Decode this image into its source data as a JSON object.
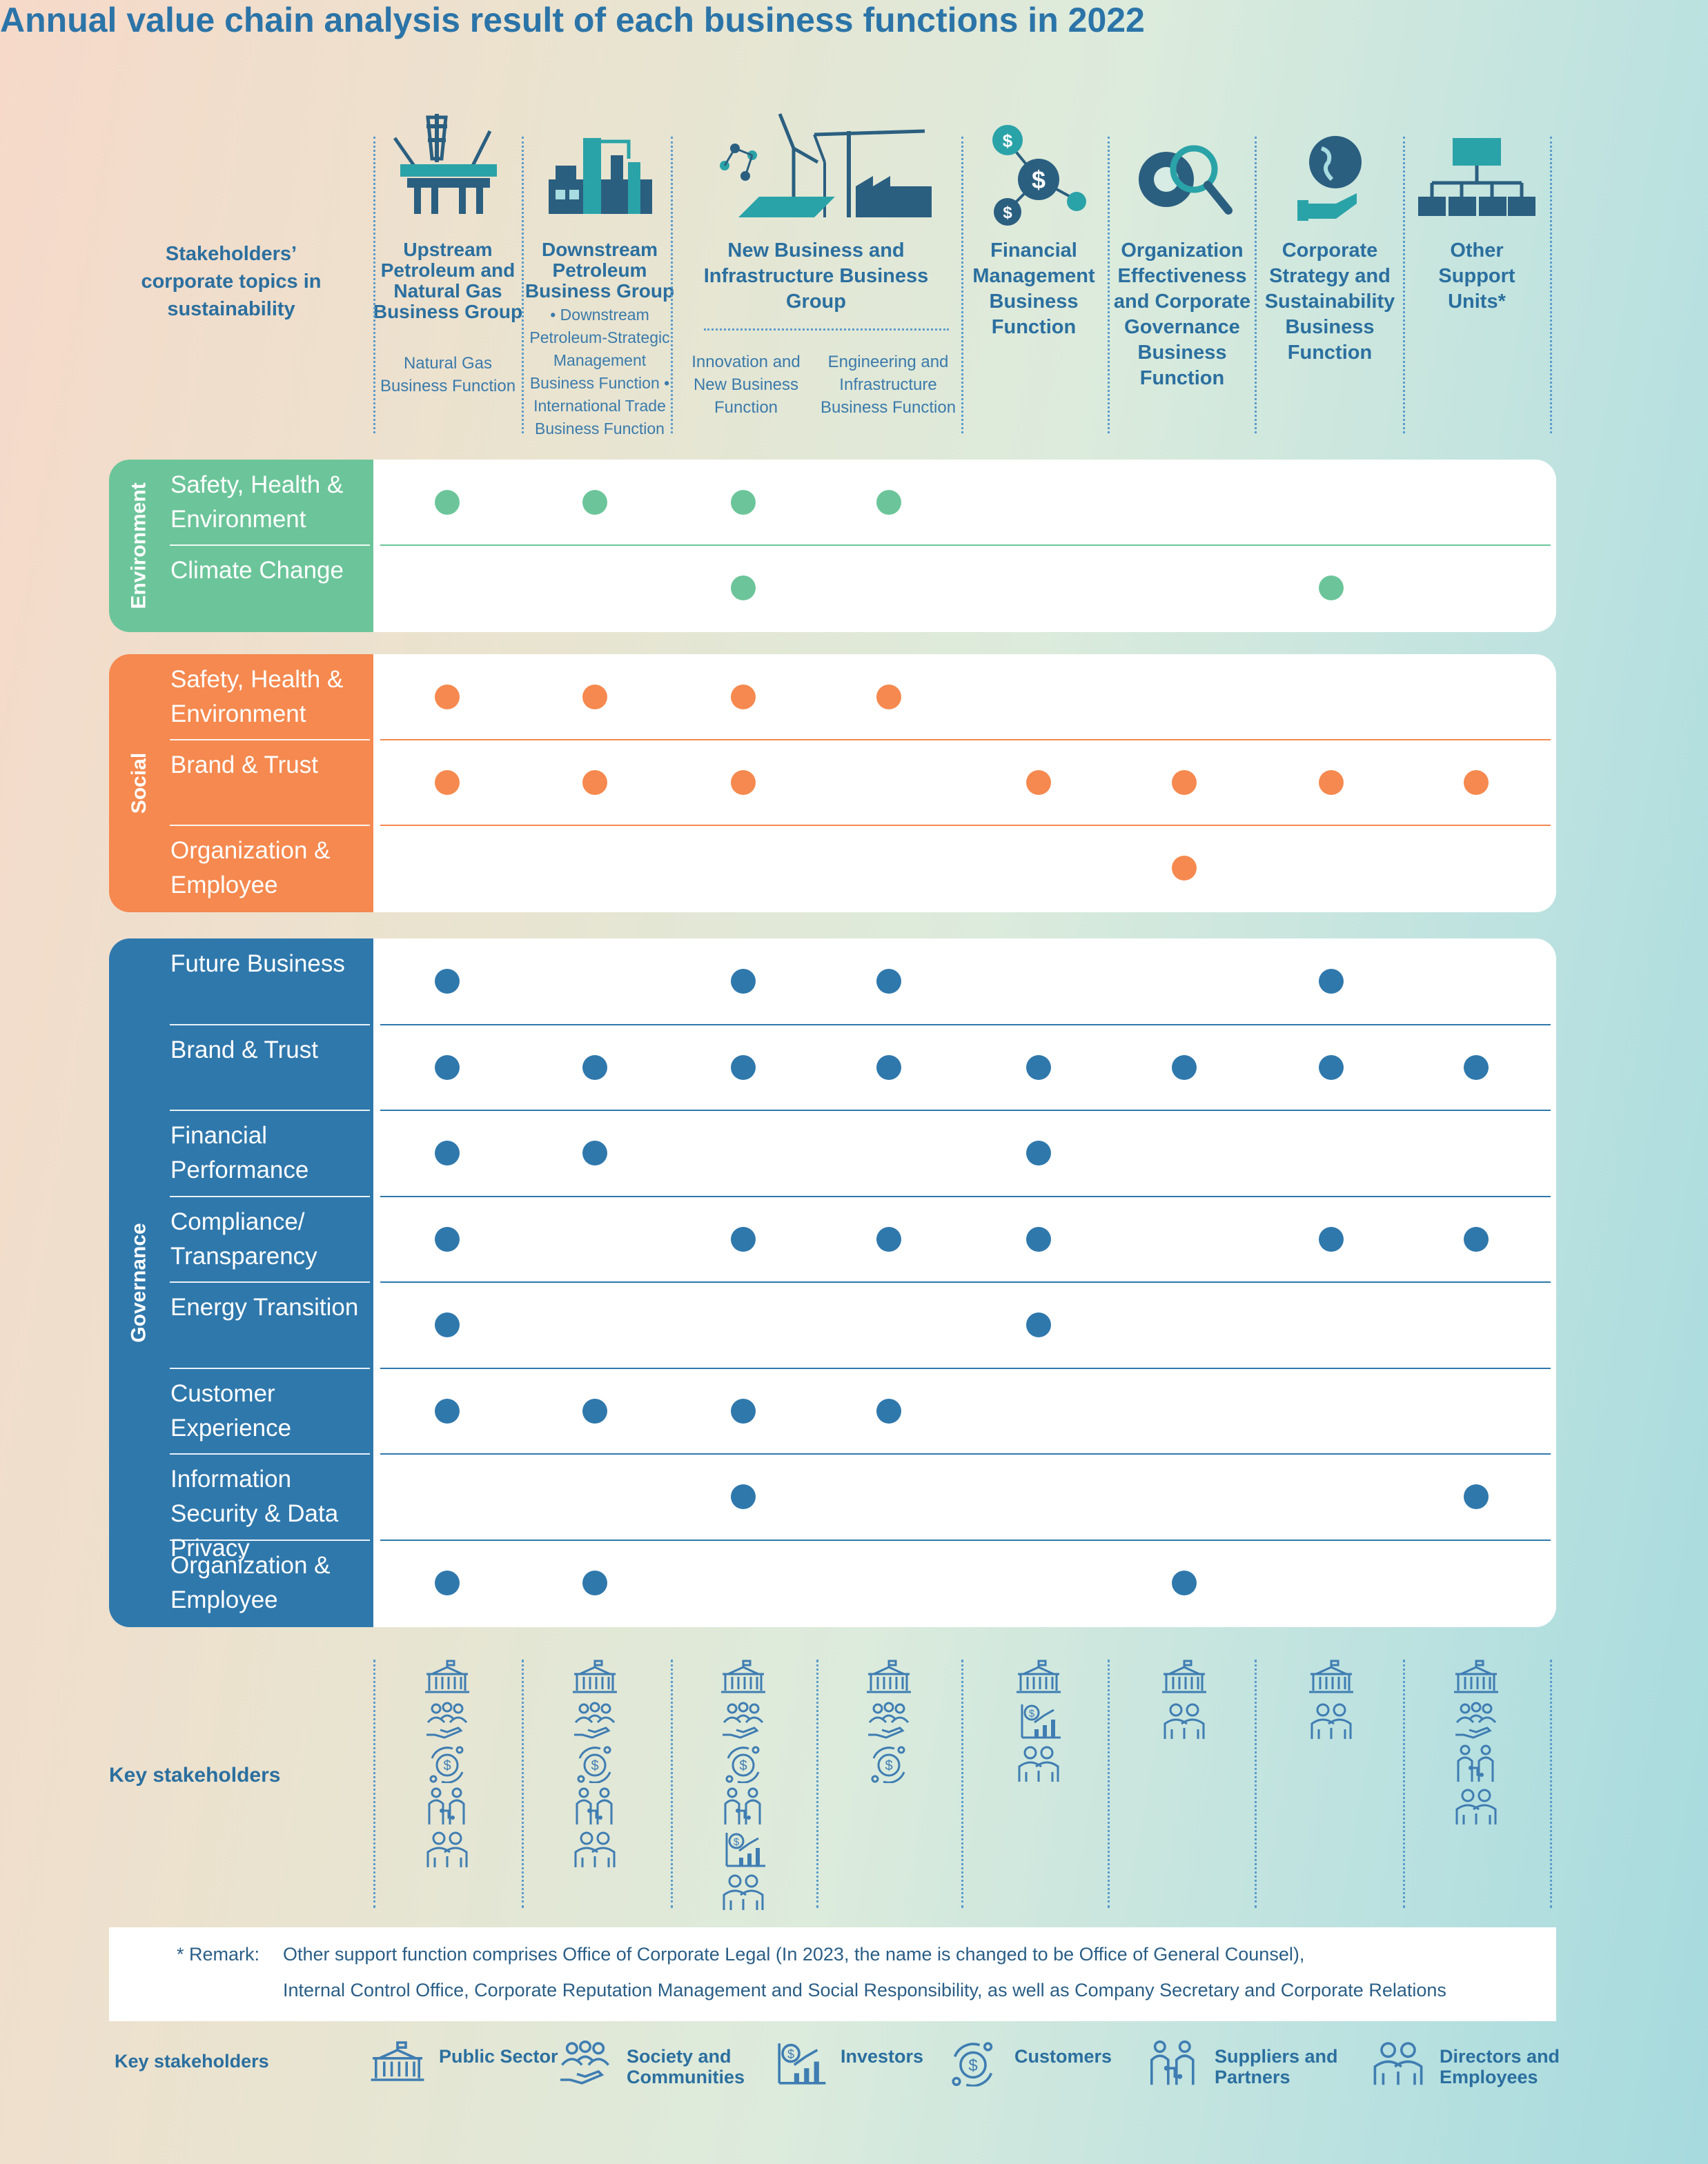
{
  "title": "Annual value chain analysis result of each business functions in 2022",
  "corner_label": "Stakeholders’ corporate topics in sustainability",
  "columns": [
    {
      "name": "Upstream Petroleum and Natural Gas Business Group",
      "sub": "Natural Gas Business Function",
      "icon": "oil-platform-icon"
    },
    {
      "name": "Downstream Petroleum Business Group",
      "sub": "• Downstream Petroleum-Strategic Management Business Function • International Trade Business Function",
      "icon": "refinery-icon"
    },
    {
      "name": "New Business and Infrastructure Business Group",
      "sub": "Innovation and New Business Function",
      "icon": "renewable-energy-icon"
    },
    {
      "name": "",
      "sub": "Engineering and Infrastructure Business Function",
      "icon": "construction-crane-icon"
    },
    {
      "name": "Financial Management Business Function",
      "sub": "",
      "icon": "finance-network-icon"
    },
    {
      "name": "Organization Effectiveness and Corporate Governance Business Function",
      "sub": "",
      "icon": "gear-magnifier-icon"
    },
    {
      "name": "Corporate Strategy and Sustainability Business Function",
      "sub": "",
      "icon": "globe-in-hand-icon"
    },
    {
      "name": "Other Support Units*",
      "sub": "",
      "icon": "org-chart-icon"
    }
  ],
  "colors": {
    "environment": "#6cc59a",
    "social": "#f5894f",
    "governance": "#2f78ac",
    "environment_dot": "#6cc59a",
    "social_dot": "#f5894f",
    "governance_dot": "#2f78ac"
  },
  "sections": [
    {
      "label": "Environment",
      "key": "environment",
      "rows": [
        {
          "topic": "Safety, Health & Environment",
          "marks": [
            1,
            1,
            1,
            1,
            0,
            0,
            0,
            0
          ]
        },
        {
          "topic": "Climate Change",
          "marks": [
            0,
            0,
            1,
            0,
            0,
            0,
            1,
            0
          ]
        }
      ]
    },
    {
      "label": "Social",
      "key": "social",
      "rows": [
        {
          "topic": "Safety, Health & Environment",
          "marks": [
            1,
            1,
            1,
            1,
            0,
            0,
            0,
            0
          ]
        },
        {
          "topic": "Brand & Trust",
          "marks": [
            1,
            1,
            1,
            0,
            1,
            1,
            1,
            1
          ]
        },
        {
          "topic": "Organization & Employee",
          "marks": [
            0,
            0,
            0,
            0,
            0,
            1,
            0,
            0
          ]
        }
      ]
    },
    {
      "label": "Governance",
      "key": "governance",
      "rows": [
        {
          "topic": "Future Business",
          "marks": [
            1,
            0,
            1,
            1,
            0,
            0,
            1,
            0
          ]
        },
        {
          "topic": "Brand & Trust",
          "marks": [
            1,
            1,
            1,
            1,
            1,
            1,
            1,
            1
          ]
        },
        {
          "topic": "Financial Performance",
          "marks": [
            1,
            1,
            0,
            0,
            1,
            0,
            0,
            0
          ]
        },
        {
          "topic": "Compliance/ Transparency",
          "marks": [
            1,
            0,
            1,
            1,
            1,
            0,
            1,
            1
          ]
        },
        {
          "topic": "Energy Transition",
          "marks": [
            1,
            0,
            0,
            0,
            1,
            0,
            0,
            0
          ]
        },
        {
          "topic": "Customer Experience",
          "marks": [
            1,
            1,
            1,
            1,
            0,
            0,
            0,
            0
          ]
        },
        {
          "topic": "Information Security & Data Privacy",
          "marks": [
            0,
            0,
            1,
            0,
            0,
            0,
            0,
            1
          ]
        },
        {
          "topic": "Organization & Employee",
          "marks": [
            1,
            1,
            0,
            0,
            0,
            1,
            0,
            0
          ]
        }
      ]
    }
  ],
  "key_stakeholders_label": "Key stakeholders",
  "stakeholder_columns": [
    [
      "public-sector",
      "society",
      "customers",
      "suppliers",
      "directors"
    ],
    [
      "public-sector",
      "society",
      "customers",
      "suppliers",
      "directors"
    ],
    [
      "public-sector",
      "society",
      "customers",
      "suppliers",
      "investors",
      "directors"
    ],
    [
      "public-sector",
      "society",
      "customers"
    ],
    [
      "public-sector",
      "investors",
      "directors"
    ],
    [
      "public-sector",
      "directors"
    ],
    [
      "public-sector",
      "directors"
    ],
    [
      "public-sector",
      "society",
      "suppliers",
      "directors"
    ]
  ],
  "remark": {
    "prefix": "* Remark:",
    "line1": "Other support function comprises Office of Corporate Legal (In 2023, the name is changed to be Office of General Counsel),",
    "line2": "Internal Control Office, Corporate Reputation Management and Social Responsibility, as well as Company Secretary and Corporate Relations"
  },
  "legend": {
    "label": "Key stakeholders",
    "items": [
      {
        "key": "public-sector",
        "text": "Public Sector"
      },
      {
        "key": "society",
        "text": "Society and Communities"
      },
      {
        "key": "investors",
        "text": "Investors"
      },
      {
        "key": "customers",
        "text": "Customers"
      },
      {
        "key": "suppliers",
        "text": "Suppliers and Partners"
      },
      {
        "key": "directors",
        "text": "Directors and Employees"
      }
    ]
  }
}
